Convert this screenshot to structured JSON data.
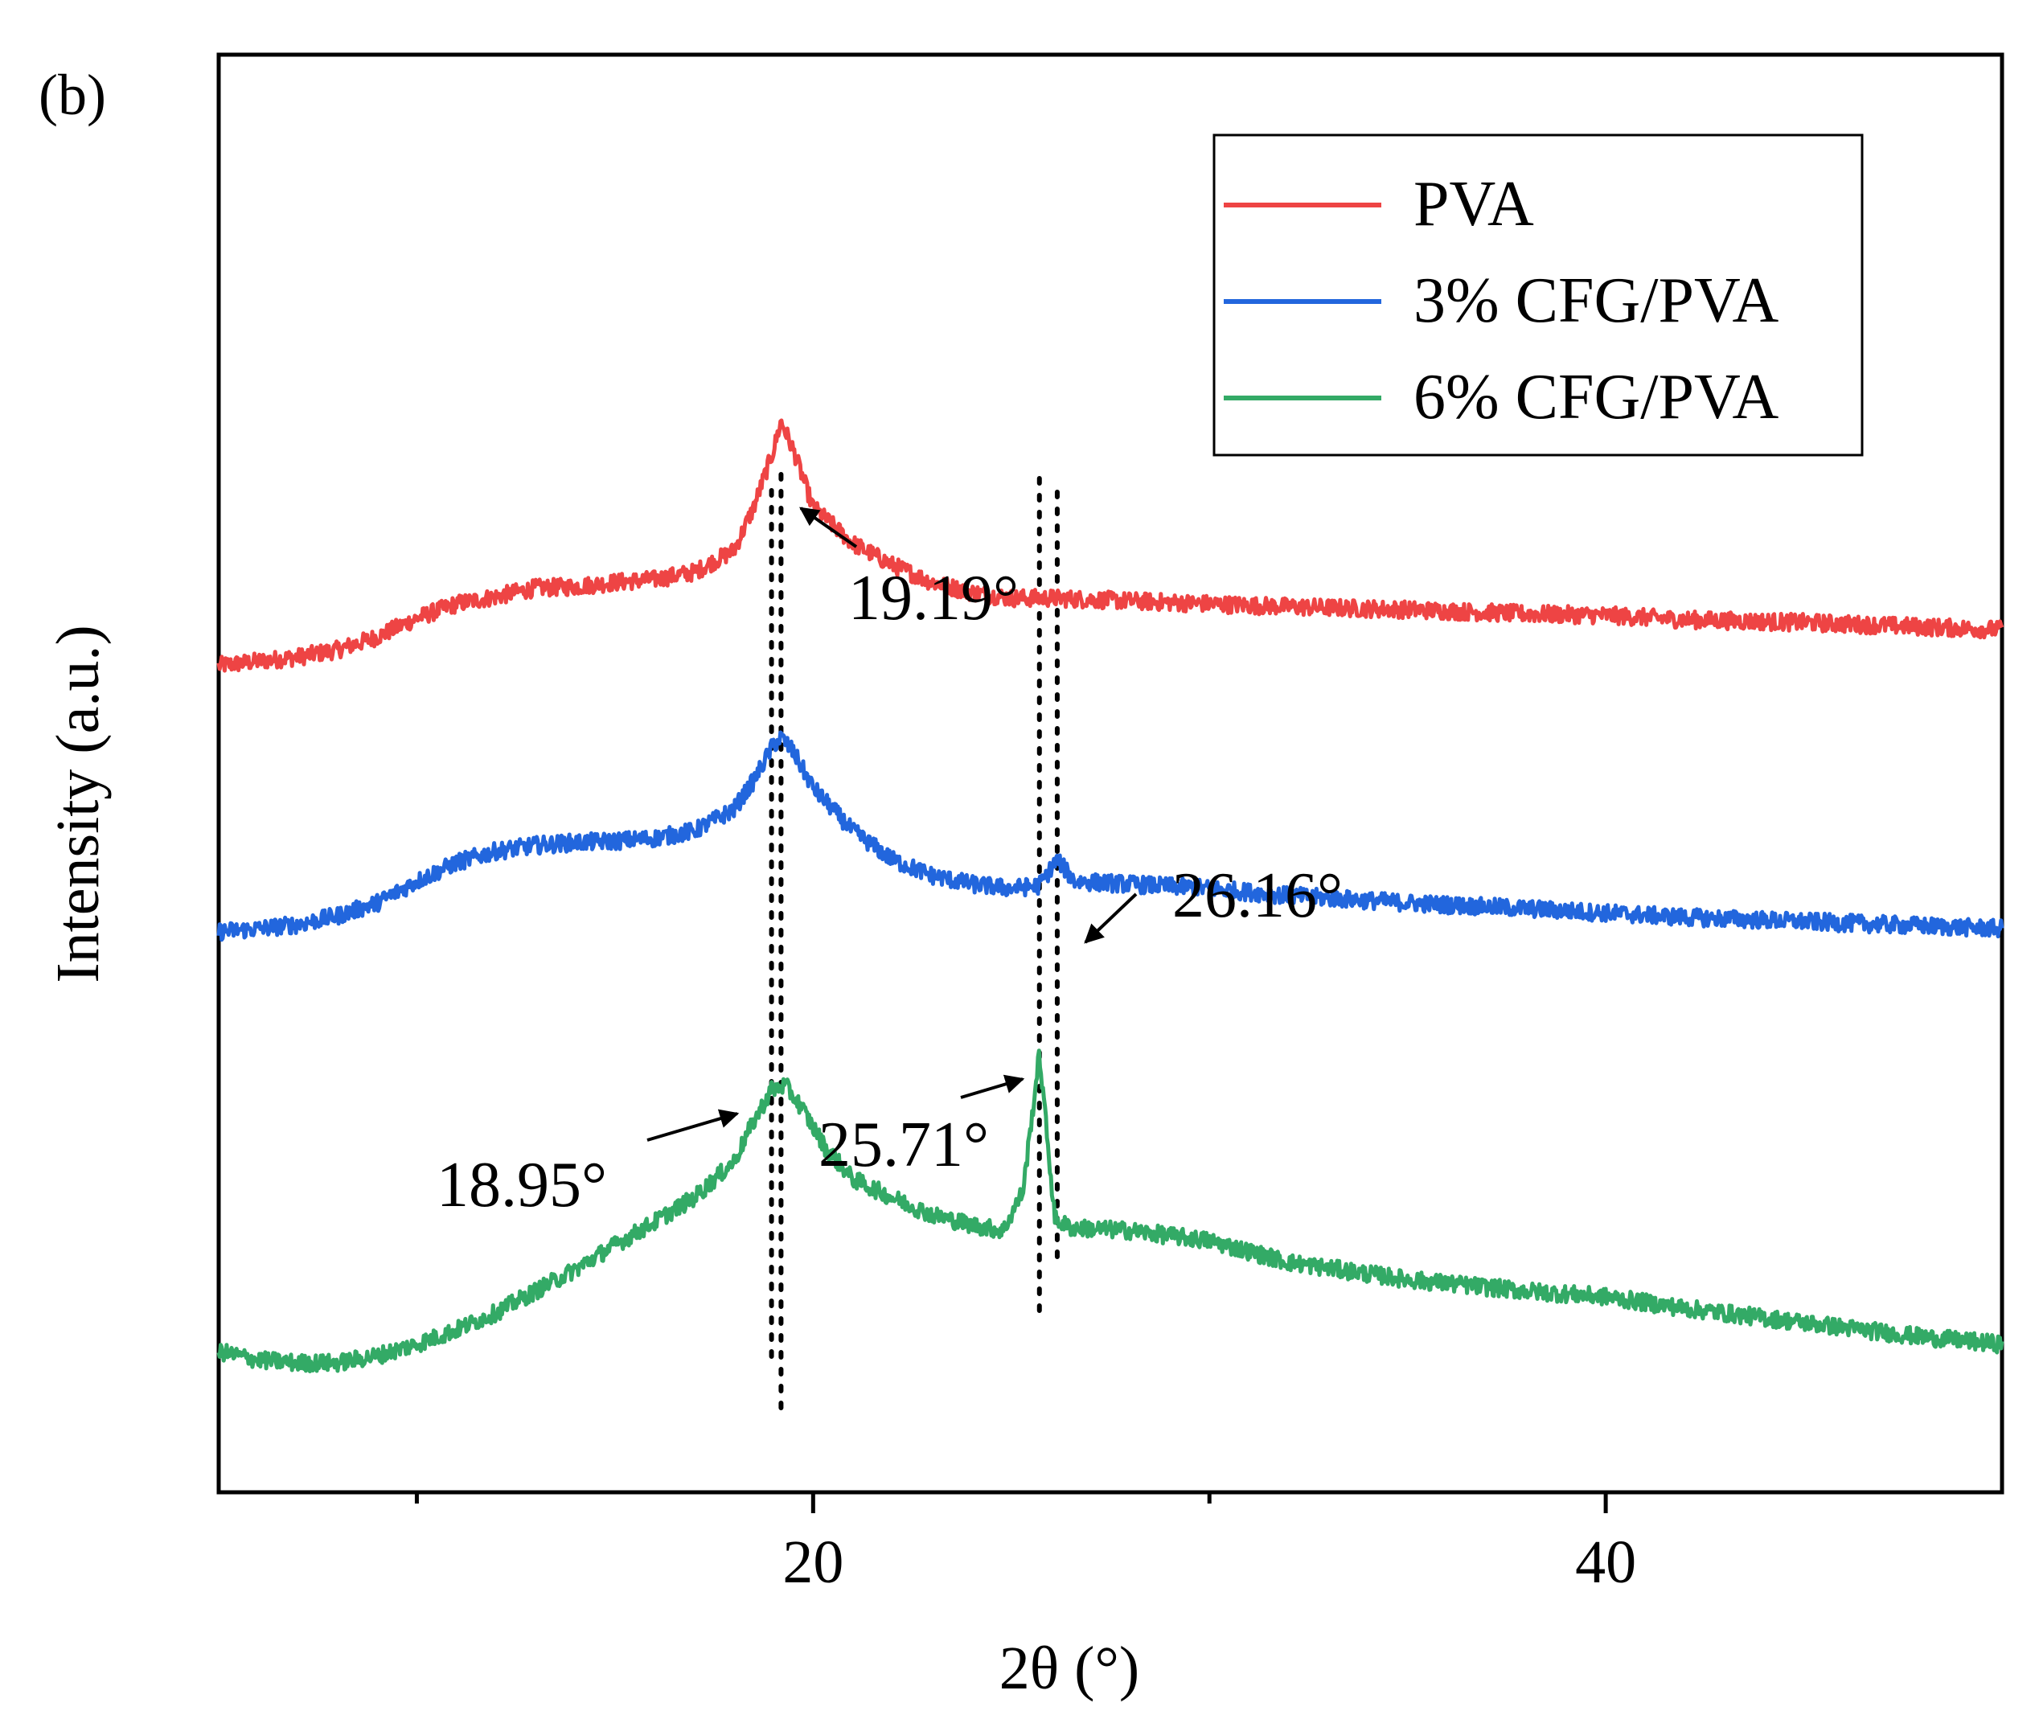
{
  "chart_data": {
    "type": "line",
    "panel_label": "(b)",
    "title": "",
    "xlabel": "2θ (°)",
    "ylabel": "Intensity (a.u.)",
    "xlim": [
      5,
      50
    ],
    "ylim": [
      0,
      1
    ],
    "xticks": [
      20,
      40
    ],
    "xticks_minor": [
      10,
      30
    ],
    "yticks": [],
    "grid": false,
    "legend": {
      "position": "top-right",
      "entries": [
        {
          "label": "PVA",
          "color": "#ee4444"
        },
        {
          "label": "3% CFG/PVA",
          "color": "#2266dd"
        },
        {
          "label": "6% CFG/PVA",
          "color": "#33aa66"
        }
      ]
    },
    "series": [
      {
        "name": "PVA",
        "color": "#ee4444",
        "x": [
          5,
          6,
          7,
          8,
          9,
          10,
          11,
          12,
          13,
          14,
          15,
          16,
          17,
          18,
          18.5,
          19,
          19.19,
          19.5,
          20,
          21,
          22,
          23,
          24,
          25,
          26,
          28,
          30,
          32,
          35,
          38,
          40,
          42,
          45,
          48,
          50
        ],
        "y": [
          0.575,
          0.578,
          0.581,
          0.586,
          0.595,
          0.608,
          0.618,
          0.623,
          0.629,
          0.63,
          0.633,
          0.635,
          0.64,
          0.655,
          0.685,
          0.725,
          0.745,
          0.725,
          0.685,
          0.66,
          0.645,
          0.633,
          0.626,
          0.622,
          0.622,
          0.62,
          0.618,
          0.616,
          0.614,
          0.611,
          0.61,
          0.607,
          0.605,
          0.602,
          0.6
        ]
      },
      {
        "name": "3% CFG/PVA",
        "color": "#2266dd",
        "x": [
          5,
          6,
          7,
          8,
          9,
          10,
          11,
          12,
          13,
          14,
          15,
          16,
          17,
          18,
          18.5,
          19,
          19.19,
          19.5,
          20,
          21,
          22,
          23,
          24,
          25,
          25.7,
          26.16,
          26.6,
          28,
          30,
          32,
          35,
          38,
          40,
          42,
          45,
          48,
          50
        ],
        "y": [
          0.39,
          0.392,
          0.395,
          0.401,
          0.41,
          0.425,
          0.438,
          0.446,
          0.45,
          0.452,
          0.453,
          0.455,
          0.46,
          0.475,
          0.495,
          0.52,
          0.525,
          0.515,
          0.49,
          0.46,
          0.44,
          0.429,
          0.423,
          0.42,
          0.422,
          0.44,
          0.425,
          0.423,
          0.42,
          0.415,
          0.41,
          0.406,
          0.403,
          0.4,
          0.397,
          0.394,
          0.392
        ]
      },
      {
        "name": "6% CFG/PVA",
        "color": "#33aa66",
        "x": [
          5,
          6,
          7,
          8,
          9,
          10,
          11,
          12,
          13,
          14,
          15,
          16,
          17,
          18,
          18.5,
          18.95,
          19.3,
          19.7,
          20.3,
          21,
          22,
          23,
          24,
          24.8,
          25.3,
          25.71,
          26.1,
          26.5,
          28,
          30,
          32,
          35,
          38,
          40,
          42,
          45,
          48,
          50
        ],
        "y": [
          0.098,
          0.092,
          0.09,
          0.09,
          0.095,
          0.103,
          0.113,
          0.125,
          0.14,
          0.155,
          0.172,
          0.188,
          0.205,
          0.23,
          0.258,
          0.28,
          0.283,
          0.268,
          0.24,
          0.218,
          0.205,
          0.193,
          0.186,
          0.182,
          0.21,
          0.305,
          0.19,
          0.184,
          0.182,
          0.175,
          0.16,
          0.148,
          0.14,
          0.136,
          0.128,
          0.118,
          0.108,
          0.103
        ]
      }
    ],
    "annotations": [
      {
        "label": "19.19°"
      },
      {
        "label": "26.16°"
      },
      {
        "label": "25.71°"
      },
      {
        "label": "18.95°"
      }
    ],
    "reference_lines_x": [
      18.95,
      19.19,
      25.71,
      26.16
    ]
  }
}
